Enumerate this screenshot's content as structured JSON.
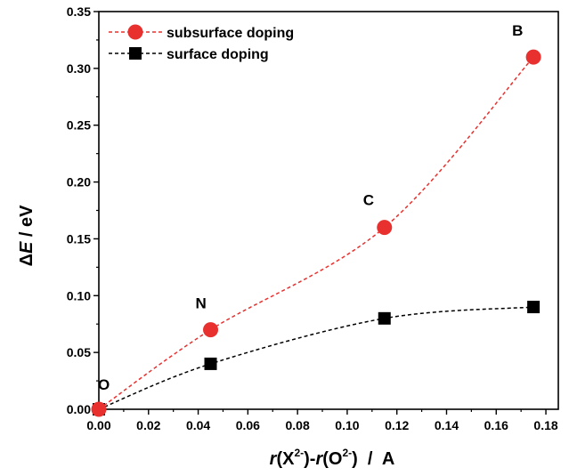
{
  "chart_data": {
    "type": "line",
    "xlabel": "",
    "ylabel": "",
    "xlim": [
      0.0,
      0.185
    ],
    "ylim": [
      0.0,
      0.35
    ],
    "xticks": [
      0.0,
      0.02,
      0.04,
      0.06,
      0.08,
      0.1,
      0.12,
      0.14,
      0.16,
      0.18
    ],
    "yticks": [
      0.0,
      0.05,
      0.1,
      0.15,
      0.2,
      0.25,
      0.3,
      0.35
    ],
    "xtick_labels": [
      "0.00",
      "0.02",
      "0.04",
      "0.06",
      "0.08",
      "0.10",
      "0.12",
      "0.14",
      "0.16",
      "0.18"
    ],
    "ytick_labels": [
      "0.00",
      "0.05",
      "0.10",
      "0.15",
      "0.20",
      "0.25",
      "0.30",
      "0.35"
    ],
    "grid": false,
    "legend_position": "top-left",
    "series": [
      {
        "name": "subsurface doping",
        "marker": "circle",
        "line_style": "dashed",
        "color": "#e8312f",
        "x": [
          0.0,
          0.045,
          0.115,
          0.175
        ],
        "y": [
          0.0,
          0.07,
          0.16,
          0.31
        ]
      },
      {
        "name": "surface doping",
        "marker": "square",
        "line_style": "dashed",
        "color": "#000000",
        "x": [
          0.0,
          0.045,
          0.115,
          0.175
        ],
        "y": [
          0.0,
          0.04,
          0.08,
          0.09
        ]
      }
    ],
    "annotations": [
      {
        "text": "O",
        "x": 0.0,
        "y": 0.0
      },
      {
        "text": "N",
        "x": 0.045,
        "y": 0.07
      },
      {
        "text": "C",
        "x": 0.115,
        "y": 0.16
      },
      {
        "text": "B",
        "x": 0.175,
        "y": 0.31
      }
    ],
    "ylabel_parts": {
      "delta": "Δ",
      "var": "E",
      "unit": " / eV"
    },
    "xlabel_parts": {
      "r1": "r",
      "x": "(X",
      "sup1": "2-",
      "mid": ")-",
      "r2": "r",
      "o": "(O",
      "sup2": "2-",
      "unit": ")  /  A"
    }
  }
}
